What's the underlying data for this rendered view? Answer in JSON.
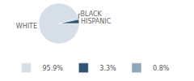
{
  "chart_data": {
    "type": "pie",
    "categories": [
      "WHITE",
      "HISPANIC",
      "BLACK"
    ],
    "values": [
      95.9,
      3.3,
      0.8
    ],
    "value_labels": [
      "95.9%",
      "3.3%",
      "0.8%"
    ],
    "colors": [
      "#d6dfe8",
      "#2e5476",
      "#8fa7bd"
    ],
    "legend": "bottom"
  }
}
